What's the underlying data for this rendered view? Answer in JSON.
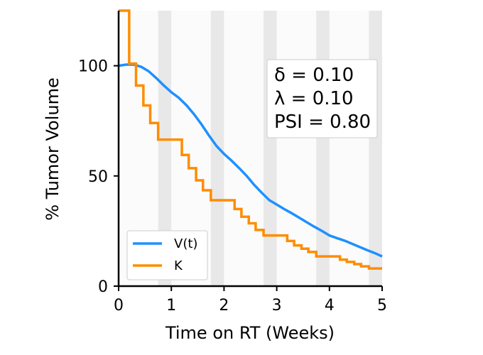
{
  "chart_data": {
    "type": "line",
    "xlabel": "Time on RT (Weeks)",
    "ylabel": "% Tumor Volume",
    "xlim": [
      0,
      5
    ],
    "ylim": [
      0,
      125
    ],
    "xticks": [
      0,
      1,
      2,
      3,
      4,
      5
    ],
    "yticks": [
      0,
      50,
      100
    ],
    "shaded_intervals": [
      [
        0.75,
        1.0
      ],
      [
        1.75,
        2.0
      ],
      [
        2.75,
        3.0
      ],
      [
        3.75,
        4.0
      ],
      [
        4.75,
        5.0
      ]
    ],
    "annotation": [
      "δ = 0.10",
      "λ = 0.10",
      "PSI = 0.80"
    ],
    "legend_position": "lower-left",
    "series": [
      {
        "name": "V(t)",
        "color": "#1E90FF",
        "step": false,
        "x": [
          0,
          0.14,
          0.29,
          0.43,
          0.57,
          0.71,
          0.86,
          1.0,
          1.14,
          1.29,
          1.43,
          1.57,
          1.71,
          1.86,
          2.0,
          2.14,
          2.29,
          2.43,
          2.57,
          2.71,
          2.86,
          3.0,
          3.14,
          3.29,
          3.43,
          3.57,
          3.71,
          3.86,
          4.0,
          4.14,
          4.29,
          4.43,
          4.57,
          4.71,
          4.86,
          5.0
        ],
        "y": [
          100,
          100.5,
          100.5,
          99.5,
          97.5,
          94.5,
          91,
          88,
          85.5,
          82,
          78,
          73.5,
          68.5,
          63.5,
          60,
          57,
          53.5,
          50,
          46,
          42.5,
          39,
          37,
          35,
          33,
          31,
          29,
          27,
          25,
          23,
          21.8,
          20.6,
          19.2,
          17.8,
          16.4,
          15,
          13.5
        ]
      },
      {
        "name": "K",
        "color": "#FF8C00",
        "step": true,
        "x": [
          0,
          0.2,
          0.33,
          0.47,
          0.6,
          0.75,
          1.2,
          1.33,
          1.47,
          1.6,
          1.75,
          2.2,
          2.33,
          2.47,
          2.6,
          2.75,
          3.2,
          3.33,
          3.47,
          3.6,
          3.75,
          4.2,
          4.33,
          4.47,
          4.6,
          4.75,
          5.0
        ],
        "y": [
          125,
          101,
          91,
          82,
          74,
          66.5,
          59.5,
          53.5,
          48,
          43.5,
          39,
          35,
          31.5,
          28.5,
          25.5,
          23,
          20.5,
          18.5,
          17,
          15.5,
          13.5,
          12,
          11,
          10,
          9,
          8,
          8
        ]
      }
    ]
  }
}
